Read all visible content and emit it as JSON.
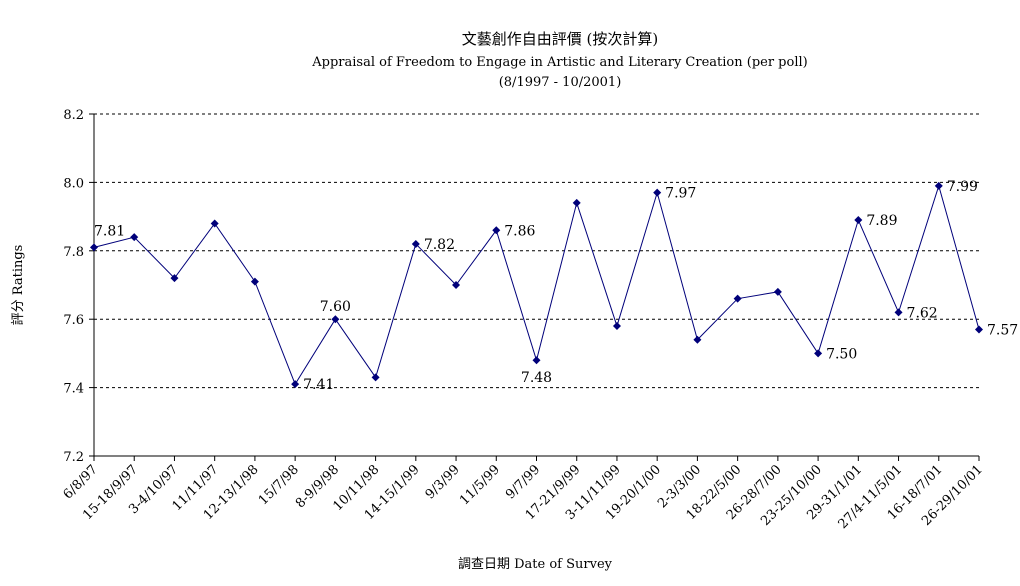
{
  "chart_data": {
    "type": "line",
    "title": "文藝創作自由評價 (按次計算)",
    "subtitle": "Appraisal of Freedom to Engage in Artistic and Literary Creation (per poll)",
    "period": "(8/1997 - 10/2001)",
    "xlabel": "調查日期 Date of Survey",
    "ylabel": "評分 Ratings",
    "ylim": [
      7.2,
      8.2
    ],
    "yticks": [
      "7.2",
      "7.4",
      "7.6",
      "7.8",
      "8.0",
      "8.2"
    ],
    "grid": true,
    "line_color": "#00007a",
    "categories": [
      "6/8/97",
      "15-18/9/97",
      "3-4/10/97",
      "11/11/97",
      "12-13/1/98",
      "15/7/98",
      "8-9/9/98",
      "10/11/98",
      "14-15/1/99",
      "9/3/99",
      "11/5/99",
      "9/7/99",
      "17-21/9/99",
      "3-11/11/99",
      "19-20/1/00",
      "2-3/3/00",
      "18-22/5/00",
      "26-28/7/00",
      "23-25/10/00",
      "29-31/1/01",
      "27/4-11/5/01",
      "16-18/7/01",
      "26-29/10/01"
    ],
    "values": [
      7.81,
      7.84,
      7.72,
      7.88,
      7.71,
      7.41,
      7.6,
      7.43,
      7.82,
      7.7,
      7.86,
      7.48,
      7.94,
      7.58,
      7.97,
      7.54,
      7.66,
      7.68,
      7.5,
      7.89,
      7.62,
      7.99,
      7.57
    ],
    "data_labels": [
      {
        "index": 0,
        "text": "7.81"
      },
      {
        "index": 5,
        "text": "7.41"
      },
      {
        "index": 6,
        "text": "7.60"
      },
      {
        "index": 8,
        "text": "7.82"
      },
      {
        "index": 10,
        "text": "7.86"
      },
      {
        "index": 11,
        "text": "7.48"
      },
      {
        "index": 14,
        "text": "7.97"
      },
      {
        "index": 18,
        "text": "7.50"
      },
      {
        "index": 19,
        "text": "7.89"
      },
      {
        "index": 20,
        "text": "7.62"
      },
      {
        "index": 21,
        "text": "7.99"
      },
      {
        "index": 22,
        "text": "7.57"
      }
    ]
  }
}
